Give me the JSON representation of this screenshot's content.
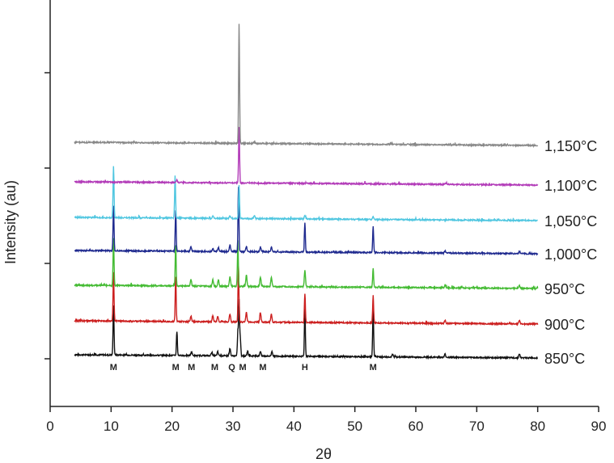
{
  "chart_data": {
    "type": "line",
    "title": "",
    "xlabel": "2θ",
    "ylabel": "Intensity (au)",
    "xlim": [
      0,
      90
    ],
    "x_ticks": [
      0,
      10,
      20,
      30,
      40,
      50,
      60,
      70,
      80,
      90
    ],
    "x_tick_labels": [
      "0",
      "10",
      "20",
      "30",
      "40",
      "50",
      "60",
      "70",
      "80",
      "90"
    ],
    "y_ticks_labeled": false,
    "grid": false,
    "x_range_data": [
      4,
      80
    ],
    "series": [
      {
        "name": "850°C",
        "color": "#111111",
        "peaks": [
          [
            10.4,
            62
          ],
          [
            20.8,
            30
          ],
          [
            23.2,
            5
          ],
          [
            26.5,
            4
          ],
          [
            27.5,
            5
          ],
          [
            29.5,
            9
          ],
          [
            30.8,
            30
          ],
          [
            31.0,
            68
          ],
          [
            31.2,
            22
          ],
          [
            32.4,
            6
          ],
          [
            34.5,
            6
          ],
          [
            36.4,
            6
          ],
          [
            41.8,
            58
          ],
          [
            53.0,
            60
          ],
          [
            56.2,
            3
          ],
          [
            64.8,
            4
          ],
          [
            77.0,
            5
          ]
        ]
      },
      {
        "name": "900°C",
        "color": "#cc1f1f",
        "peaks": [
          [
            10.4,
            60
          ],
          [
            20.6,
            55
          ],
          [
            23.1,
            7
          ],
          [
            26.7,
            7
          ],
          [
            27.5,
            7
          ],
          [
            29.5,
            10
          ],
          [
            30.9,
            70
          ],
          [
            32.2,
            12
          ],
          [
            34.5,
            12
          ],
          [
            36.3,
            10
          ],
          [
            41.8,
            36
          ],
          [
            53.0,
            34
          ],
          [
            64.8,
            4
          ],
          [
            77.0,
            4
          ]
        ]
      },
      {
        "name": "950°C",
        "color": "#44bb33",
        "peaks": [
          [
            10.4,
            58
          ],
          [
            20.6,
            50
          ],
          [
            23.1,
            8
          ],
          [
            26.7,
            8
          ],
          [
            27.6,
            8
          ],
          [
            29.5,
            12
          ],
          [
            30.8,
            55
          ],
          [
            32.2,
            14
          ],
          [
            34.5,
            12
          ],
          [
            36.3,
            12
          ],
          [
            41.8,
            20
          ],
          [
            53.0,
            24
          ],
          [
            64.8,
            4
          ],
          [
            77.0,
            4
          ]
        ]
      },
      {
        "name": "1,000°C",
        "color": "#1f2a8f",
        "peaks": [
          [
            10.4,
            56
          ],
          [
            20.6,
            50
          ],
          [
            23.1,
            6
          ],
          [
            26.7,
            4
          ],
          [
            27.6,
            5
          ],
          [
            29.5,
            8
          ],
          [
            30.9,
            80
          ],
          [
            32.2,
            6
          ],
          [
            34.5,
            6
          ],
          [
            36.3,
            6
          ],
          [
            41.8,
            36
          ],
          [
            53.0,
            32
          ],
          [
            64.8,
            3
          ],
          [
            77.0,
            3
          ]
        ]
      },
      {
        "name": "1,050°C",
        "color": "#4fc6e0",
        "peaks": [
          [
            10.4,
            64
          ],
          [
            20.5,
            52
          ],
          [
            26.7,
            3
          ],
          [
            29.5,
            3
          ],
          [
            31.0,
            42
          ],
          [
            33.5,
            4
          ],
          [
            41.8,
            4
          ],
          [
            53.0,
            4
          ]
        ]
      },
      {
        "name": "1,100°C",
        "color": "#b23ab8",
        "peaks": [
          [
            20.8,
            3
          ],
          [
            31.0,
            70
          ],
          [
            65.0,
            2
          ]
        ]
      },
      {
        "name": "1,150°C",
        "color": "#888888",
        "peaks": [
          [
            31.0,
            148
          ],
          [
            33.5,
            2
          ]
        ]
      }
    ],
    "phase_labels": [
      {
        "text": "M",
        "x": 10.4
      },
      {
        "text": "M",
        "x": 20.6
      },
      {
        "text": "M",
        "x": 23.2
      },
      {
        "text": "M",
        "x": 27.0
      },
      {
        "text": "Q",
        "x": 29.8
      },
      {
        "text": "M",
        "x": 31.6
      },
      {
        "text": "M",
        "x": 34.9
      },
      {
        "text": "H",
        "x": 41.8
      },
      {
        "text": "M",
        "x": 53.0
      }
    ]
  }
}
